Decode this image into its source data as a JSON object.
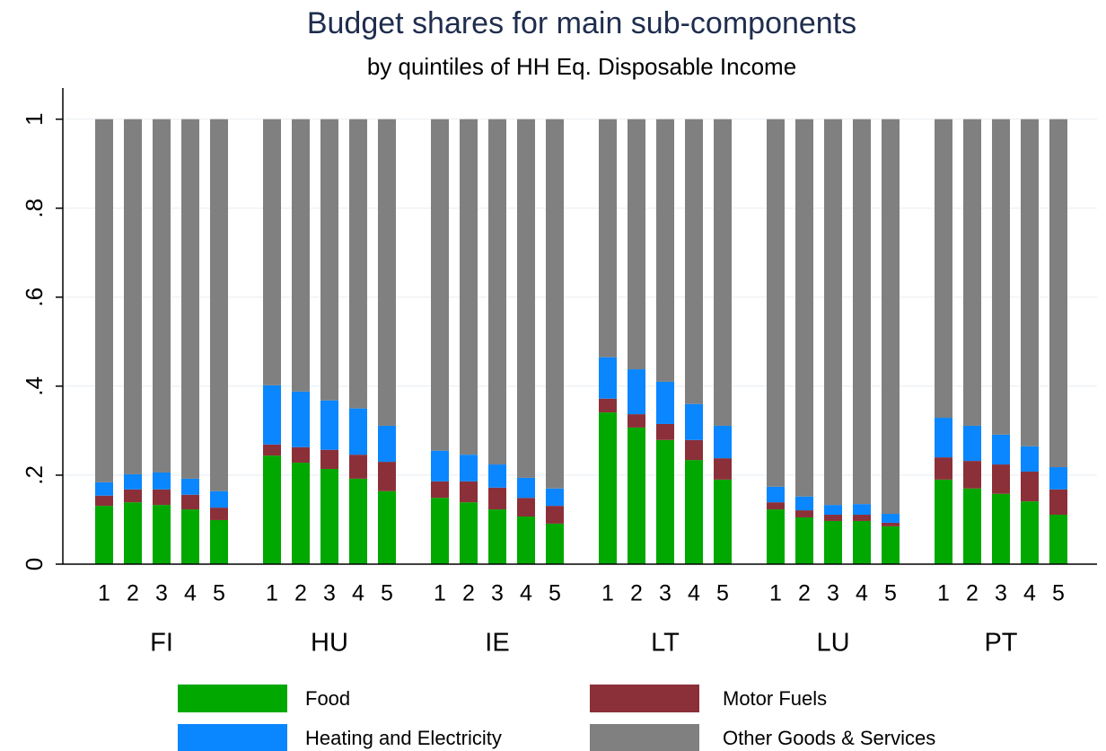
{
  "chart_data": {
    "type": "stacked_bar",
    "title": "Budget shares for main sub-components",
    "subtitle": "by quintiles of HH Eq. Disposable Income",
    "groups": [
      "FI",
      "HU",
      "IE",
      "LT",
      "LU",
      "PT"
    ],
    "categories": [
      "1",
      "2",
      "3",
      "4",
      "5",
      "1",
      "2",
      "3",
      "4",
      "5",
      "1",
      "2",
      "3",
      "4",
      "5",
      "1",
      "2",
      "3",
      "4",
      "5",
      "1",
      "2",
      "3",
      "4",
      "5",
      "1",
      "2",
      "3",
      "4",
      "5"
    ],
    "series": [
      {
        "name": "Food",
        "color": "#00a800",
        "values": [
          0.131,
          0.139,
          0.133,
          0.123,
          0.099,
          0.244,
          0.228,
          0.214,
          0.192,
          0.164,
          0.149,
          0.139,
          0.123,
          0.107,
          0.091,
          0.341,
          0.307,
          0.279,
          0.234,
          0.19,
          0.123,
          0.105,
          0.097,
          0.097,
          0.085,
          0.19,
          0.17,
          0.158,
          0.141,
          0.111
        ]
      },
      {
        "name": "Motor Fuels",
        "color": "#8b3039",
        "values": [
          0.023,
          0.029,
          0.035,
          0.033,
          0.028,
          0.025,
          0.035,
          0.043,
          0.054,
          0.066,
          0.037,
          0.047,
          0.049,
          0.042,
          0.04,
          0.031,
          0.03,
          0.036,
          0.045,
          0.048,
          0.016,
          0.016,
          0.014,
          0.014,
          0.008,
          0.05,
          0.062,
          0.066,
          0.067,
          0.057
        ]
      },
      {
        "name": "Heating and Electricity",
        "color": "#0a86ff",
        "values": [
          0.03,
          0.034,
          0.038,
          0.036,
          0.037,
          0.133,
          0.125,
          0.111,
          0.104,
          0.081,
          0.069,
          0.06,
          0.052,
          0.045,
          0.039,
          0.093,
          0.101,
          0.095,
          0.081,
          0.073,
          0.035,
          0.031,
          0.022,
          0.024,
          0.02,
          0.089,
          0.079,
          0.067,
          0.057,
          0.05
        ]
      },
      {
        "name": "Other Goods & Services",
        "color": "#808080",
        "values": [
          0.816,
          0.798,
          0.794,
          0.808,
          0.836,
          0.598,
          0.612,
          0.632,
          0.65,
          0.689,
          0.745,
          0.754,
          0.776,
          0.806,
          0.83,
          0.535,
          0.562,
          0.59,
          0.64,
          0.689,
          0.826,
          0.848,
          0.867,
          0.865,
          0.887,
          0.671,
          0.689,
          0.709,
          0.735,
          0.782
        ]
      }
    ],
    "ylim": [
      0,
      1.07
    ],
    "yticks": [
      0,
      {
        "value": 0.2,
        "label": ".2"
      },
      {
        "value": 0.4,
        "label": ".4"
      },
      {
        "value": 0.6,
        "label": ".6"
      },
      {
        "value": 0.8,
        "label": ".8"
      },
      1
    ],
    "grid": true
  }
}
